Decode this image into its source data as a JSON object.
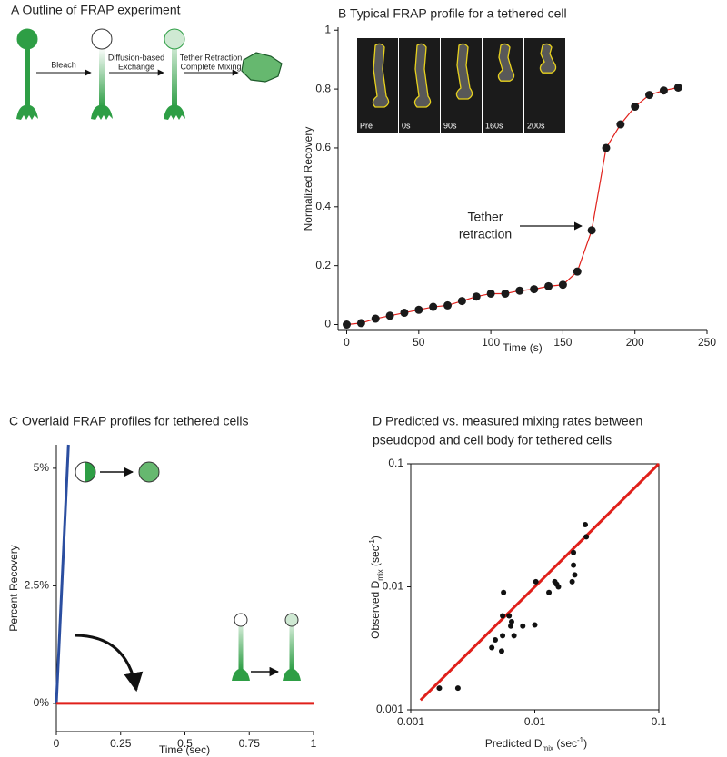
{
  "panel_a": {
    "title": "A  Outline of FRAP experiment",
    "steps": [
      "Bleach",
      [
        "Diffusion-based",
        "Exchange"
      ],
      [
        "Tether Retraction",
        "Complete Mixing"
      ]
    ]
  },
  "chart_data": [
    {
      "type": "line",
      "title": "B  Typical FRAP profile for a tethered cell",
      "xlabel": "Time (s)",
      "ylabel": "Normalized Recovery",
      "series": [
        {
          "color": "#e0201b",
          "marker_color": "#1a1a1a",
          "x": [
            0,
            10,
            20,
            30,
            40,
            50,
            60,
            70,
            80,
            90,
            100,
            110,
            120,
            130,
            140,
            150,
            160,
            170,
            180,
            190,
            200,
            210,
            220,
            230
          ],
          "values": [
            0,
            0.005,
            0.02,
            0.03,
            0.04,
            0.05,
            0.06,
            0.065,
            0.08,
            0.095,
            0.105,
            0.105,
            0.115,
            0.12,
            0.13,
            0.135,
            0.18,
            0.32,
            0.6,
            0.68,
            0.74,
            0.78,
            0.795,
            0.805
          ]
        }
      ],
      "xlim": [
        -6,
        250
      ],
      "ylim": [
        -0.02,
        1.01
      ],
      "xticks": [
        0,
        50,
        100,
        150,
        200,
        250
      ],
      "yticks": [
        0,
        0.2,
        0.4,
        0.6,
        0.8,
        1
      ],
      "annotation": [
        "Tether",
        "retraction"
      ],
      "inset_labels": [
        "Pre",
        "0s",
        "90s",
        "160s",
        "200s"
      ]
    },
    {
      "type": "line",
      "title": "C  Overlaid FRAP profiles for tethered cells",
      "xlabel": "Time (sec)",
      "ylabel": "Percent Recovery",
      "series": [
        {
          "color": "#2b4ea0",
          "x": [
            0,
            0.047
          ],
          "values": [
            0,
            5.5
          ]
        },
        {
          "color": "#e0201b",
          "x": [
            0,
            1
          ],
          "values": [
            0,
            0
          ]
        }
      ],
      "xlim": [
        0,
        1
      ],
      "ylim": [
        -0.6,
        5.5
      ],
      "xticks": [
        0,
        0.25,
        0.5,
        0.75,
        1
      ],
      "yticks": [
        {
          "value": 0,
          "label": "0%"
        },
        {
          "value": 2.5,
          "label": "2.5%"
        },
        {
          "value": 5,
          "label": "5%"
        }
      ]
    },
    {
      "type": "scatter",
      "title": [
        "D  Predicted vs. measured mixing rates between",
        "pseudopod and cell body for tethered cells"
      ],
      "xlabel": [
        "Predicted D",
        "mix",
        " (sec",
        "-1",
        ")"
      ],
      "ylabel": [
        "Observed D",
        "mix",
        " (sec",
        "-1",
        ")"
      ],
      "log_scale": true,
      "series": [
        {
          "color": "#111111",
          "x": [
            0.0017,
            0.0024,
            0.0045,
            0.0048,
            0.0054,
            0.0055,
            0.0055,
            0.0056,
            0.0062,
            0.0064,
            0.0065,
            0.0068,
            0.008,
            0.01,
            0.0102,
            0.013,
            0.0145,
            0.015,
            0.0155,
            0.02,
            0.0205,
            0.0205,
            0.021,
            0.0255,
            0.026
          ],
          "values": [
            0.0015,
            0.0015,
            0.0032,
            0.0037,
            0.003,
            0.004,
            0.0058,
            0.009,
            0.0058,
            0.0048,
            0.0052,
            0.004,
            0.0048,
            0.0049,
            0.011,
            0.009,
            0.011,
            0.0105,
            0.01,
            0.011,
            0.015,
            0.019,
            0.0125,
            0.032,
            0.0255
          ]
        }
      ],
      "reference_line": {
        "color": "#e0201b",
        "x": [
          0.0012,
          0.1
        ],
        "values": [
          0.0012,
          0.1
        ]
      },
      "xlim": [
        0.001,
        0.1
      ],
      "ylim": [
        0.001,
        0.1
      ],
      "xticks": [
        0.001,
        0.01,
        0.1
      ],
      "yticks": [
        0.001,
        0.01,
        0.1
      ]
    }
  ]
}
